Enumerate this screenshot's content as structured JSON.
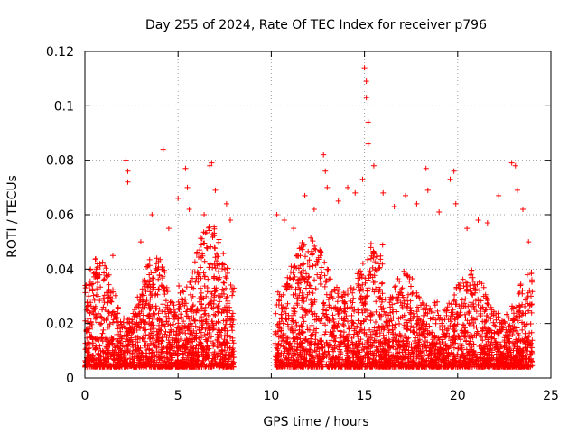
{
  "chart_data": {
    "type": "scatter",
    "title": "Day 255 of 2024, Rate Of TEC Index for receiver p796",
    "xlabel": "GPS time / hours",
    "ylabel": "ROTI / TECUs",
    "xlim": [
      0,
      25
    ],
    "ylim": [
      0,
      0.12
    ],
    "xticks": [
      0,
      5,
      10,
      15,
      20,
      25
    ],
    "xtick_labels": [
      "0",
      "5",
      "10",
      "15",
      "20",
      "25"
    ],
    "yticks": [
      0,
      0.02,
      0.04,
      0.06,
      0.08,
      0.1,
      0.12
    ],
    "ytick_labels": [
      "0",
      "0.02",
      "0.04",
      "0.06",
      "0.08",
      "0.1",
      "0.12"
    ],
    "grid": true,
    "marker": "+",
    "series_color": "#ff0000",
    "data_gap_hours": [
      8.0,
      10.2
    ],
    "series": [
      {
        "name": "ROTI",
        "x": [
          0.3,
          0.8,
          1.5,
          2.2,
          2.3,
          2.3,
          3.0,
          3.6,
          4.2,
          4.5,
          5.0,
          5.4,
          5.5,
          5.6,
          6.4,
          6.7,
          6.8,
          7.0,
          7.6,
          7.8,
          10.3,
          10.7,
          11.2,
          11.8,
          12.3,
          12.8,
          12.9,
          13.0,
          13.6,
          14.1,
          14.5,
          14.9,
          15.0,
          15.1,
          15.1,
          15.2,
          15.2,
          15.5,
          16.0,
          16.6,
          17.2,
          17.8,
          18.3,
          18.4,
          19.0,
          19.6,
          19.8,
          19.9,
          20.5,
          21.1,
          21.6,
          22.2,
          22.9,
          23.1,
          23.2,
          23.5,
          23.8
        ],
        "y": [
          0.04,
          0.042,
          0.045,
          0.08,
          0.076,
          0.072,
          0.05,
          0.06,
          0.084,
          0.055,
          0.066,
          0.077,
          0.07,
          0.062,
          0.06,
          0.078,
          0.079,
          0.069,
          0.064,
          0.058,
          0.06,
          0.058,
          0.055,
          0.067,
          0.062,
          0.082,
          0.076,
          0.07,
          0.065,
          0.07,
          0.068,
          0.073,
          0.114,
          0.109,
          0.103,
          0.094,
          0.086,
          0.078,
          0.068,
          0.063,
          0.067,
          0.064,
          0.077,
          0.069,
          0.061,
          0.073,
          0.076,
          0.064,
          0.055,
          0.058,
          0.057,
          0.067,
          0.079,
          0.078,
          0.069,
          0.062,
          0.05
        ]
      }
    ]
  }
}
